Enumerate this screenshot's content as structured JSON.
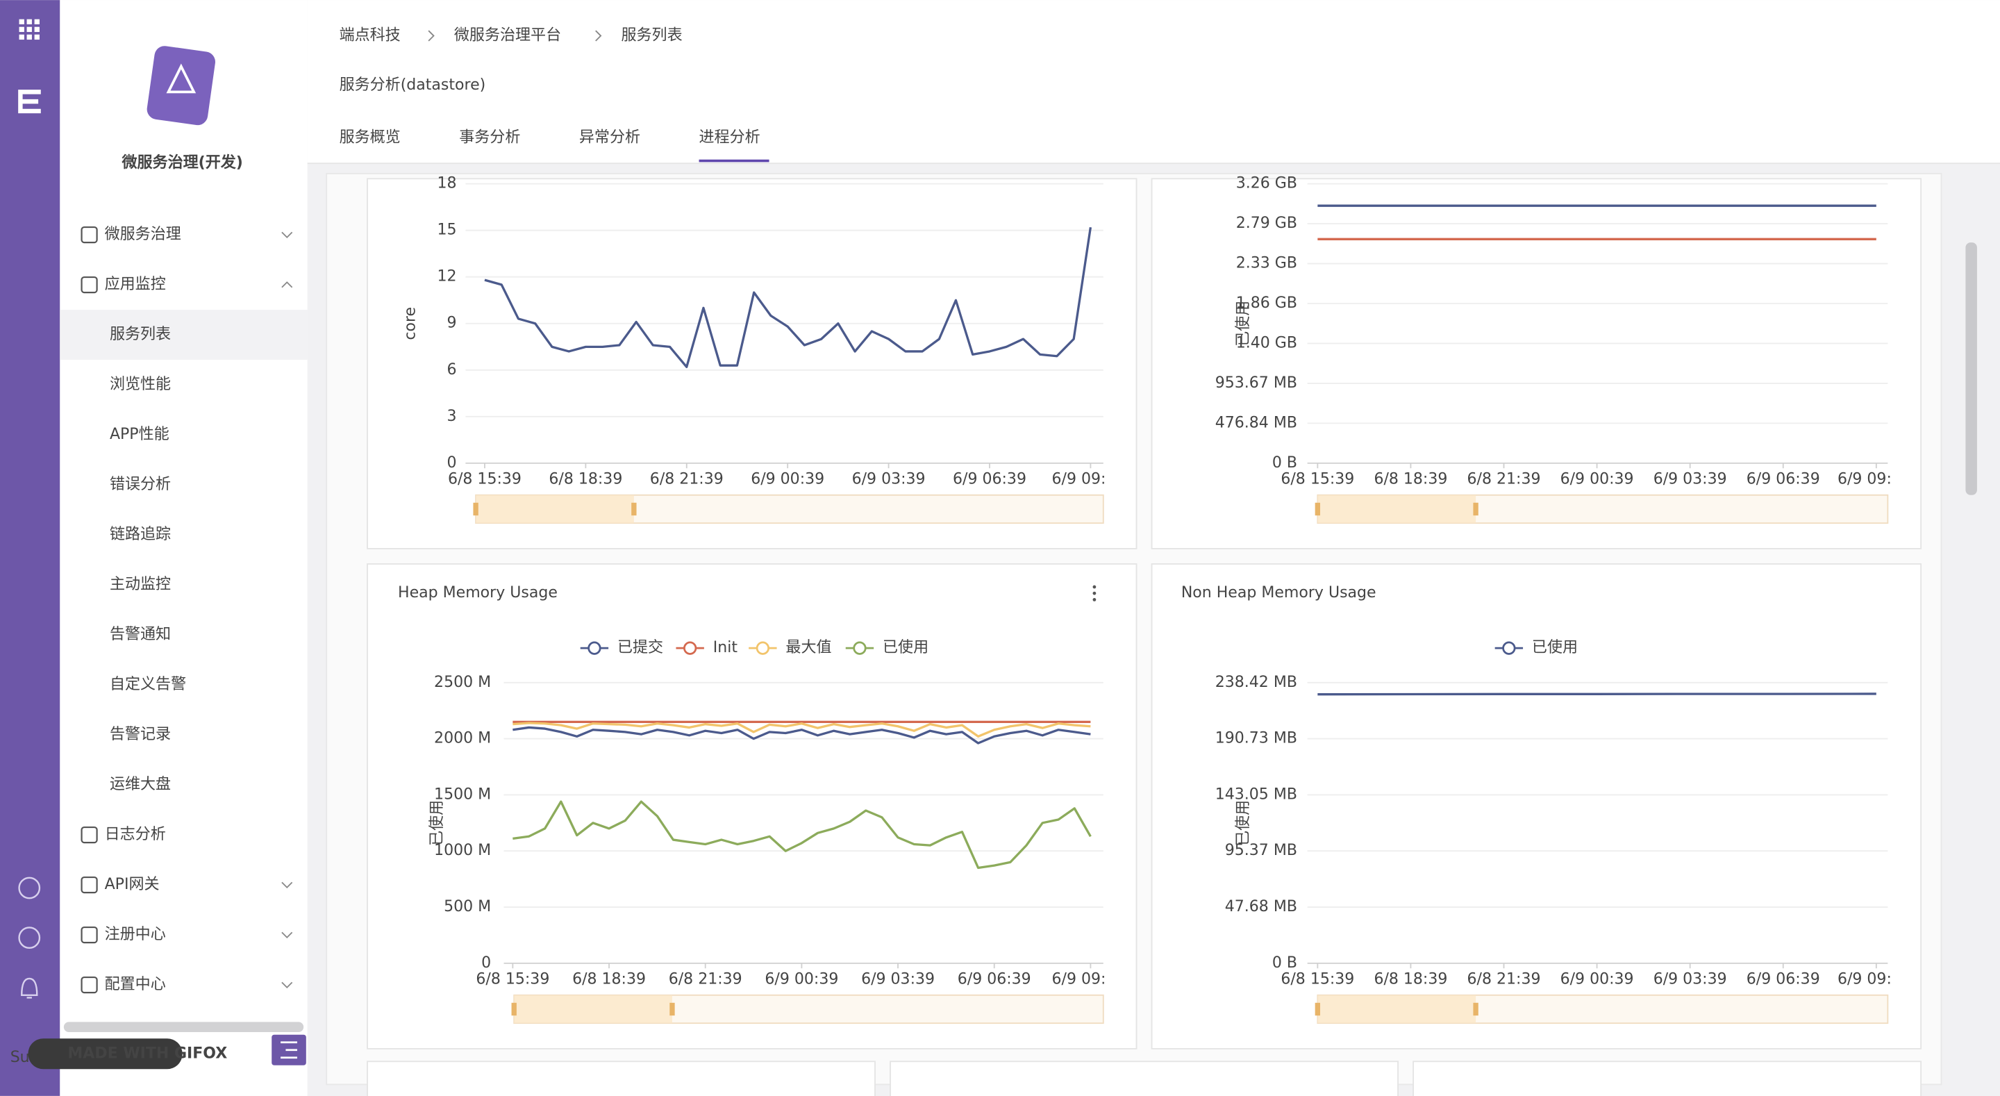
{
  "breadcrumb": [
    "端点科技",
    "微服务治理平台",
    "服务列表"
  ],
  "page_title": "服务分析(datastore)",
  "tabs": [
    "服务概览",
    "事务分析",
    "异常分析",
    "进程分析"
  ],
  "active_tab": 3,
  "sidebar": {
    "app_name": "微服务治理(开发)",
    "menu": [
      {
        "label": "微服务治理",
        "expandable": true,
        "expanded": false
      },
      {
        "label": "应用监控",
        "expandable": true,
        "expanded": true,
        "active_child": 0,
        "children": [
          "服务列表",
          "浏览性能",
          "APP性能",
          "错误分析",
          "链路追踪",
          "主动监控",
          "告警通知",
          "自定义告警",
          "告警记录",
          "运维大盘"
        ]
      },
      {
        "label": "日志分析",
        "expandable": false
      },
      {
        "label": "API网关",
        "expandable": true,
        "expanded": false
      },
      {
        "label": "注册中心",
        "expandable": true,
        "expanded": false
      },
      {
        "label": "配置中心",
        "expandable": true,
        "expanded": false
      }
    ],
    "user": "Su",
    "watermark": "MADE WITH GIFOX"
  },
  "chart_data": [
    {
      "type": "line",
      "y_label": "core",
      "xlim": [
        0,
        36
      ],
      "ylim": [
        0,
        18
      ],
      "yticks": [
        0,
        3,
        6,
        9,
        12,
        15,
        18
      ],
      "grid": true,
      "xticks": [
        {
          "value": 0,
          "label": "6/8 15:39"
        },
        {
          "value": 6,
          "label": "6/8 18:39"
        },
        {
          "value": 12,
          "label": "6/8 21:39"
        },
        {
          "value": 18,
          "label": "6/9 00:39"
        },
        {
          "value": 24,
          "label": "6/9 03:39"
        },
        {
          "value": 30,
          "label": "6/9 06:39"
        },
        {
          "value": 36,
          "label": "6/9 09:"
        }
      ],
      "series": [
        {
          "color": "#4b5a8c",
          "values": [
            11.8,
            11.5,
            9.3,
            9.0,
            7.5,
            7.2,
            7.5,
            7.5,
            7.6,
            9.1,
            7.6,
            7.5,
            6.2,
            10.0,
            6.3,
            6.3,
            11.0,
            9.5,
            8.8,
            7.6,
            8.0,
            9.0,
            7.2,
            8.5,
            8.0,
            7.2,
            7.2,
            8.0,
            10.5,
            7.0,
            7.2,
            7.5,
            8.0,
            7.0,
            6.9,
            8.0,
            15.2
          ]
        }
      ]
    },
    {
      "type": "line",
      "y_label": "已使用",
      "xlim": [
        0,
        6
      ],
      "ylim": [
        0,
        3337.86
      ],
      "grid": true,
      "yticks": [
        {
          "value": 0,
          "label": "0 B"
        },
        {
          "value": 476.84,
          "label": "476.84 MB"
        },
        {
          "value": 953.67,
          "label": "953.67 MB"
        },
        {
          "value": 1430.51,
          "label": "1.40 GB"
        },
        {
          "value": 1907.35,
          "label": "1.86 GB"
        },
        {
          "value": 2384.19,
          "label": "2.33 GB"
        },
        {
          "value": 2861.02,
          "label": "2.79 GB"
        },
        {
          "value": 3337.86,
          "label": "3.26 GB"
        }
      ],
      "xticks": [
        {
          "value": 0,
          "label": "6/8 15:39"
        },
        {
          "value": 1,
          "label": "6/8 18:39"
        },
        {
          "value": 2,
          "label": "6/8 21:39"
        },
        {
          "value": 3,
          "label": "6/9 00:39"
        },
        {
          "value": 4,
          "label": "6/9 03:39"
        },
        {
          "value": 5,
          "label": "6/9 06:39"
        },
        {
          "value": 6,
          "label": "6/9 09:"
        }
      ],
      "series": [
        {
          "color": "#4b5a8c",
          "values": [
            3076,
            3076,
            3076,
            3076,
            3076,
            3076,
            3076
          ]
        },
        {
          "color": "#d4694f",
          "values": [
            2676,
            2676,
            2676,
            2676,
            2676,
            2676,
            2676
          ]
        }
      ]
    },
    {
      "type": "line",
      "title": "Heap Memory Usage",
      "y_label": "已使用",
      "xlim": [
        0,
        36
      ],
      "ylim": [
        0,
        2500
      ],
      "grid": true,
      "legend": "top",
      "yticks": [
        0,
        {
          "value": 500,
          "label": "500 M"
        },
        {
          "value": 1000,
          "label": "1000 M"
        },
        {
          "value": 1500,
          "label": "1500 M"
        },
        {
          "value": 2000,
          "label": "2000 M"
        },
        {
          "value": 2500,
          "label": "2500 M"
        }
      ],
      "xticks": [
        {
          "value": 0,
          "label": "6/8 15:39"
        },
        {
          "value": 6,
          "label": "6/8 18:39"
        },
        {
          "value": 12,
          "label": "6/8 21:39"
        },
        {
          "value": 18,
          "label": "6/9 00:39"
        },
        {
          "value": 24,
          "label": "6/9 03:39"
        },
        {
          "value": 30,
          "label": "6/9 06:39"
        },
        {
          "value": 36,
          "label": "6/9 09:"
        }
      ],
      "series": [
        {
          "name": "已提交",
          "color": "#4b5a8c",
          "values": [
            2080,
            2100,
            2090,
            2060,
            2020,
            2080,
            2070,
            2060,
            2040,
            2080,
            2060,
            2030,
            2070,
            2050,
            2080,
            2000,
            2060,
            2050,
            2080,
            2030,
            2070,
            2040,
            2060,
            2080,
            2050,
            2010,
            2070,
            2040,
            2060,
            1960,
            2020,
            2050,
            2070,
            2030,
            2080,
            2060,
            2040
          ]
        },
        {
          "name": "Init",
          "color": "#d4694f",
          "values": [
            2150,
            2150,
            2150,
            2150,
            2150,
            2150,
            2150,
            2150,
            2150,
            2150,
            2150,
            2150,
            2150,
            2150,
            2150,
            2150,
            2150,
            2150,
            2150,
            2150,
            2150,
            2150,
            2150,
            2150,
            2150,
            2150,
            2150,
            2150,
            2150,
            2150,
            2150,
            2150,
            2150,
            2150,
            2150,
            2150,
            2150
          ]
        },
        {
          "name": "最大值",
          "color": "#f2c46b",
          "values": [
            2130,
            2140,
            2135,
            2120,
            2090,
            2135,
            2130,
            2125,
            2110,
            2135,
            2120,
            2100,
            2130,
            2115,
            2135,
            2060,
            2125,
            2110,
            2135,
            2095,
            2130,
            2105,
            2120,
            2135,
            2110,
            2070,
            2130,
            2100,
            2120,
            2020,
            2080,
            2110,
            2130,
            2095,
            2135,
            2120,
            2110
          ]
        },
        {
          "name": "已使用",
          "color": "#8cab5b",
          "values": [
            1110,
            1130,
            1200,
            1440,
            1140,
            1250,
            1200,
            1270,
            1440,
            1310,
            1100,
            1080,
            1060,
            1100,
            1060,
            1090,
            1130,
            1000,
            1070,
            1160,
            1200,
            1260,
            1360,
            1300,
            1120,
            1060,
            1050,
            1120,
            1170,
            850,
            870,
            900,
            1050,
            1250,
            1280,
            1380,
            1130
          ]
        }
      ]
    },
    {
      "type": "line",
      "title": "Non Heap Memory Usage",
      "y_label": "已使用",
      "xlim": [
        0,
        6
      ],
      "ylim": [
        0,
        238.42
      ],
      "grid": true,
      "legend": "top",
      "yticks": [
        {
          "value": 0,
          "label": "0 B"
        },
        {
          "value": 47.68,
          "label": "47.68 MB"
        },
        {
          "value": 95.37,
          "label": "95.37 MB"
        },
        {
          "value": 143.05,
          "label": "143.05 MB"
        },
        {
          "value": 190.73,
          "label": "190.73 MB"
        },
        {
          "value": 238.42,
          "label": "238.42 MB"
        }
      ],
      "xticks": [
        {
          "value": 0,
          "label": "6/8 15:39"
        },
        {
          "value": 1,
          "label": "6/8 18:39"
        },
        {
          "value": 2,
          "label": "6/8 21:39"
        },
        {
          "value": 3,
          "label": "6/9 00:39"
        },
        {
          "value": 4,
          "label": "6/9 03:39"
        },
        {
          "value": 5,
          "label": "6/9 06:39"
        },
        {
          "value": 6,
          "label": "6/9 09:"
        }
      ],
      "series": [
        {
          "name": "已使用",
          "color": "#4b5a8c",
          "values": [
            228.5,
            228.6,
            228.7,
            228.7,
            228.8,
            228.8,
            228.9
          ]
        }
      ]
    }
  ]
}
